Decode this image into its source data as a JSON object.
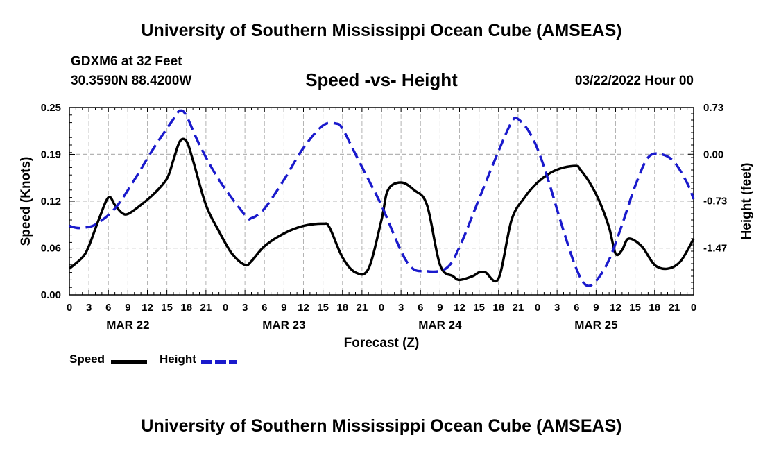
{
  "header": {
    "title": "University of Southern Mississippi Ocean Cube (AMSEAS)",
    "station": "GDXM6 at 32 Feet",
    "coords": "30.3590N  88.4200W",
    "subtitle": "Speed -vs- Height",
    "datetime": "03/22/2022 Hour 00"
  },
  "footer": {
    "title": "University of Southern Mississippi Ocean Cube (AMSEAS)"
  },
  "legend": {
    "speed_label": "Speed",
    "height_label": "Height"
  },
  "colors": {
    "speed": "#000000",
    "height": "#1a1acc",
    "grid": "#b4b4b4"
  },
  "chart_data": {
    "type": "line",
    "title": "Speed -vs- Height",
    "xlabel": "Forecast (Z)",
    "ylabel": "Speed (Knots)",
    "y2label": "Height (feet)",
    "xlim": [
      0,
      96
    ],
    "ylim": [
      0,
      0.25
    ],
    "y2lim": [
      -2.2,
      0.73
    ],
    "x_tick_labels": [
      "0",
      "3",
      "6",
      "9",
      "12",
      "15",
      "18",
      "21",
      "0",
      "3",
      "6",
      "9",
      "12",
      "15",
      "18",
      "21",
      "0",
      "3",
      "6",
      "9",
      "12",
      "15",
      "18",
      "21",
      "0",
      "3",
      "6",
      "9",
      "12",
      "15",
      "18",
      "21",
      "0"
    ],
    "y_tick_labels": [
      "0.00",
      "0.06",
      "0.12",
      "0.19",
      "0.25"
    ],
    "y_tick_values": [
      0,
      0.0625,
      0.125,
      0.1875,
      0.25
    ],
    "y2_tick_labels": [
      "-1.47",
      "-0.73",
      "0.00",
      "0.73"
    ],
    "y2_tick_values": [
      -1.47,
      -0.73,
      0,
      0.73
    ],
    "date_labels": [
      {
        "label": "MAR 22",
        "x": 9
      },
      {
        "label": "MAR 23",
        "x": 33
      },
      {
        "label": "MAR 24",
        "x": 57
      },
      {
        "label": "MAR 25",
        "x": 81
      }
    ],
    "grid": true,
    "legend_position": "bottom-left",
    "series": [
      {
        "name": "Speed",
        "axis": "left",
        "style": "solid",
        "x": [
          0,
          2,
          3,
          4.5,
          6,
          7,
          8,
          9,
          11,
          13,
          15,
          16,
          17,
          18,
          19,
          21,
          23,
          25,
          27,
          28,
          30,
          33,
          36,
          39,
          40,
          42,
          44,
          46,
          48,
          49,
          51,
          53,
          55,
          57,
          59,
          60,
          62,
          63,
          64,
          66,
          68,
          70,
          72,
          74,
          76,
          78,
          78.5,
          80,
          81.5,
          83,
          84,
          85,
          86,
          88,
          90,
          92,
          94,
          96
        ],
        "y": [
          0.035,
          0.05,
          0.065,
          0.1,
          0.13,
          0.12,
          0.11,
          0.108,
          0.12,
          0.135,
          0.155,
          0.18,
          0.205,
          0.205,
          0.18,
          0.12,
          0.085,
          0.055,
          0.04,
          0.045,
          0.065,
          0.082,
          0.092,
          0.095,
          0.09,
          0.05,
          0.03,
          0.035,
          0.1,
          0.14,
          0.15,
          0.14,
          0.12,
          0.04,
          0.025,
          0.02,
          0.025,
          0.03,
          0.03,
          0.022,
          0.1,
          0.13,
          0.15,
          0.163,
          0.17,
          0.172,
          0.168,
          0.15,
          0.125,
          0.09,
          0.055,
          0.06,
          0.075,
          0.065,
          0.04,
          0.035,
          0.045,
          0.075
        ]
      },
      {
        "name": "Height",
        "axis": "right",
        "style": "dashed",
        "x": [
          0,
          1,
          2,
          4,
          7,
          10,
          13,
          16,
          17,
          18,
          20,
          23,
          27,
          28,
          30,
          33,
          36,
          39,
          41,
          42,
          44,
          46,
          48,
          52,
          55,
          58,
          60,
          63,
          66,
          68,
          69,
          71,
          73,
          76,
          78,
          79.5,
          81,
          83,
          85,
          87,
          89,
          91,
          93,
          95,
          96
        ],
        "y": [
          -1.12,
          -1.15,
          -1.15,
          -1.1,
          -0.85,
          -0.4,
          0.1,
          0.55,
          0.68,
          0.6,
          0.15,
          -0.4,
          -0.95,
          -1.0,
          -0.85,
          -0.4,
          0.1,
          0.45,
          0.48,
          0.4,
          0.0,
          -0.4,
          -0.8,
          -1.7,
          -1.83,
          -1.78,
          -1.45,
          -0.7,
          0.05,
          0.5,
          0.55,
          0.3,
          -0.2,
          -1.2,
          -1.8,
          -2.05,
          -1.98,
          -1.65,
          -1.1,
          -0.5,
          -0.05,
          0.0,
          -0.12,
          -0.45,
          -0.7
        ]
      }
    ]
  }
}
